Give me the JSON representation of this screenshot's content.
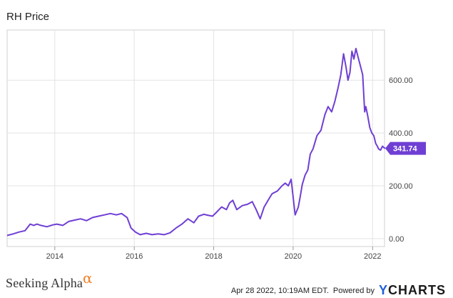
{
  "chart_data": {
    "type": "line",
    "title": "RH Price",
    "xlabel": "",
    "ylabel": "",
    "x_tick_labels": [
      "2014",
      "2016",
      "2018",
      "2020",
      "2022"
    ],
    "x_ticks": [
      2014,
      2016,
      2018,
      2020,
      2022
    ],
    "y_tick_labels": [
      "0.00",
      "200.00",
      "400.00",
      "600.00"
    ],
    "y_ticks": [
      0,
      200,
      400,
      600
    ],
    "xlim": [
      2012.8,
      2022.3
    ],
    "ylim": [
      -30,
      790
    ],
    "grid": true,
    "series": [
      {
        "color": "#6f3fd4",
        "x": [
          2012.8,
          2012.95,
          2013.1,
          2013.25,
          2013.38,
          2013.47,
          2013.55,
          2013.65,
          2013.8,
          2013.95,
          2014.05,
          2014.2,
          2014.35,
          2014.5,
          2014.65,
          2014.8,
          2014.95,
          2015.1,
          2015.25,
          2015.4,
          2015.55,
          2015.68,
          2015.82,
          2015.92,
          2016.03,
          2016.15,
          2016.3,
          2016.45,
          2016.6,
          2016.75,
          2016.9,
          2017.05,
          2017.2,
          2017.35,
          2017.5,
          2017.62,
          2017.75,
          2017.87,
          2017.97,
          2018.07,
          2018.2,
          2018.32,
          2018.4,
          2018.48,
          2018.58,
          2018.72,
          2018.85,
          2018.97,
          2019.07,
          2019.17,
          2019.27,
          2019.37,
          2019.47,
          2019.6,
          2019.72,
          2019.8,
          2019.88,
          2019.95,
          2020.05,
          2020.13,
          2020.18,
          2020.23,
          2020.3,
          2020.37,
          2020.43,
          2020.5,
          2020.6,
          2020.7,
          2020.8,
          2020.88,
          2020.97,
          2021.05,
          2021.13,
          2021.2,
          2021.27,
          2021.33,
          2021.38,
          2021.43,
          2021.48,
          2021.53,
          2021.58,
          2021.63,
          2021.7,
          2021.75,
          2021.8,
          2021.83,
          2021.87,
          2021.93,
          2021.98,
          2022.03,
          2022.08,
          2022.12,
          2022.15,
          2022.2,
          2022.25,
          2022.28,
          2022.32
        ],
        "y": [
          12,
          18,
          25,
          30,
          55,
          50,
          55,
          50,
          45,
          52,
          55,
          50,
          65,
          70,
          75,
          68,
          80,
          85,
          90,
          95,
          90,
          95,
          80,
          40,
          25,
          15,
          20,
          15,
          18,
          15,
          22,
          40,
          55,
          75,
          60,
          85,
          92,
          88,
          85,
          100,
          120,
          110,
          135,
          145,
          110,
          125,
          130,
          140,
          110,
          75,
          120,
          145,
          170,
          180,
          200,
          210,
          200,
          225,
          90,
          120,
          160,
          205,
          240,
          260,
          320,
          340,
          390,
          410,
          470,
          500,
          480,
          520,
          570,
          620,
          700,
          650,
          600,
          630,
          710,
          680,
          720,
          690,
          650,
          620,
          480,
          500,
          470,
          420,
          400,
          390,
          360,
          350,
          340,
          335,
          350,
          345,
          341.74
        ]
      }
    ],
    "last_value_label": "341.74"
  },
  "branding": {
    "left": "Seeking Alpha",
    "left_mark": "α",
    "timestamp": "Apr 28 2022, 10:19AM EDT.",
    "powered_by": "Powered by",
    "logo_text": "CHARTS",
    "logo_mark": "Y"
  },
  "colors": {
    "line": "#6f3fd4",
    "badge": "#6f3fd4",
    "grid": "#e3e3e3",
    "axis_text": "#444444",
    "alpha_mark": "#f0822a",
    "ycharts_mark": "#1f5fd9"
  }
}
